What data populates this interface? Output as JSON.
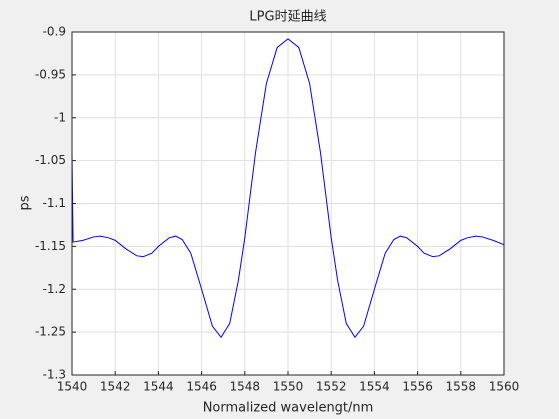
{
  "chart_data": {
    "type": "line",
    "title": "LPG时延曲线",
    "xlabel": "Normalized wavelengt/nm",
    "ylabel": "ps",
    "x": [
      1540,
      1540.05,
      1540.5,
      1541,
      1541.3,
      1541.7,
      1542,
      1542.5,
      1543,
      1543.3,
      1543.7,
      1544,
      1544.5,
      1544.8,
      1545.1,
      1545.5,
      1546,
      1546.5,
      1546.9,
      1547.3,
      1547.7,
      1548,
      1548.5,
      1549,
      1549.5,
      1550,
      1550.5,
      1551,
      1551.5,
      1552,
      1552.3,
      1552.7,
      1553.1,
      1553.5,
      1554,
      1554.5,
      1554.9,
      1555.2,
      1555.5,
      1556,
      1556.3,
      1556.7,
      1557,
      1557.5,
      1558,
      1558.3,
      1558.7,
      1559,
      1559.5,
      1560
    ],
    "series": [
      {
        "color": "#0000ff",
        "values": [
          -1.04,
          -1.145,
          -1.143,
          -1.139,
          -1.138,
          -1.14,
          -1.143,
          -1.153,
          -1.161,
          -1.162,
          -1.158,
          -1.15,
          -1.14,
          -1.138,
          -1.142,
          -1.158,
          -1.2,
          -1.243,
          -1.256,
          -1.24,
          -1.19,
          -1.14,
          -1.04,
          -0.96,
          -0.918,
          -0.908,
          -0.918,
          -0.96,
          -1.04,
          -1.14,
          -1.19,
          -1.24,
          -1.256,
          -1.243,
          -1.2,
          -1.158,
          -1.142,
          -1.138,
          -1.14,
          -1.15,
          -1.158,
          -1.162,
          -1.161,
          -1.153,
          -1.143,
          -1.14,
          -1.138,
          -1.139,
          -1.143,
          -1.148
        ]
      }
    ],
    "xlim": [
      1540,
      1560
    ],
    "xticks": [
      1540,
      1542,
      1544,
      1546,
      1548,
      1550,
      1552,
      1554,
      1556,
      1558,
      1560
    ],
    "ylim": [
      -1.3,
      -0.9
    ],
    "yticks": [
      -1.3,
      -1.25,
      -1.2,
      -1.15,
      -1.1,
      -1.05,
      -1,
      -0.95,
      -0.9
    ],
    "grid": true
  }
}
